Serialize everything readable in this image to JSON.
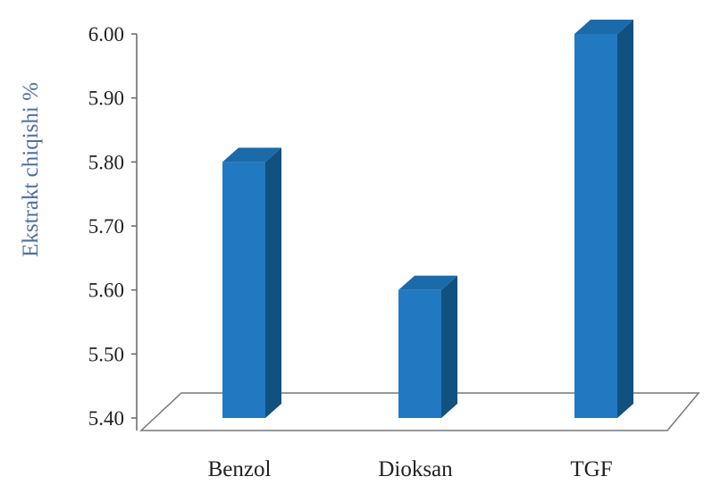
{
  "chart_data": {
    "type": "bar",
    "categories": [
      "Benzol",
      "Dioksan",
      "TGF"
    ],
    "values": [
      5.8,
      5.6,
      6.0
    ],
    "xlabel": "",
    "ylabel": "Ekstrakt chiqishi %",
    "ylim": [
      5.4,
      6.0
    ],
    "yticks": [
      "5.40",
      "5.50",
      "5.60",
      "5.70",
      "5.80",
      "5.90",
      "6.00"
    ],
    "style_3d": true,
    "grid": false,
    "legend": "none",
    "colors": {
      "bar_front": "#2079c1",
      "bar_side": "#12507f",
      "bar_top": "#1b6aa9",
      "axis_title": "#4d6fa3",
      "axis_line": "#666666"
    }
  }
}
